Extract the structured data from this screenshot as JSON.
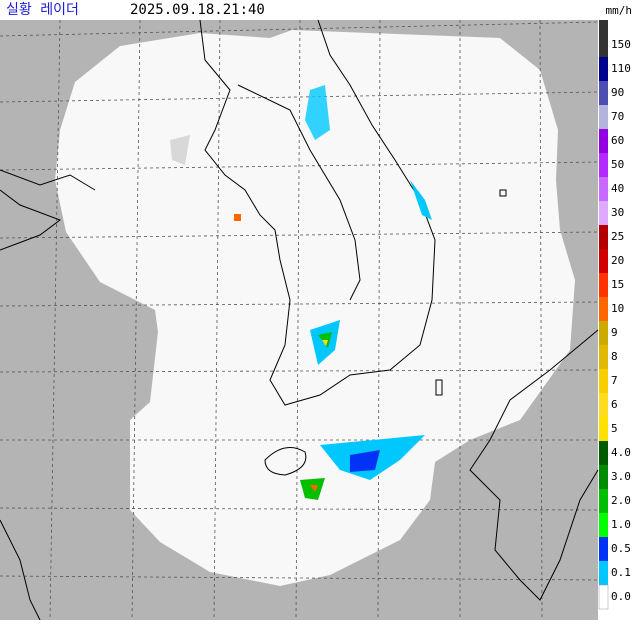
{
  "header": {
    "title": "실황 레이더",
    "timestamp": "2025.09.18.21:40",
    "unit": "mm/h"
  },
  "legend": {
    "levels": [
      {
        "label": "150",
        "color": "#333333"
      },
      {
        "label": "110",
        "color": "#000390"
      },
      {
        "label": "90",
        "color": "#4c4eb1"
      },
      {
        "label": "70",
        "color": "#b3b4de"
      },
      {
        "label": "60",
        "color": "#9300e4"
      },
      {
        "label": "50",
        "color": "#b329ff"
      },
      {
        "label": "40",
        "color": "#c969ff"
      },
      {
        "label": "30",
        "color": "#dfa9ff"
      },
      {
        "label": "25",
        "color": "#b40000"
      },
      {
        "label": "20",
        "color": "#d20000"
      },
      {
        "label": "15",
        "color": "#ff3300"
      },
      {
        "label": "10",
        "color": "#ff6600"
      },
      {
        "label": "9",
        "color": "#ccaa00"
      },
      {
        "label": "8",
        "color": "#e0b900"
      },
      {
        "label": "7",
        "color": "#f9cd00"
      },
      {
        "label": "6",
        "color": "#ffdc1f"
      },
      {
        "label": "5",
        "color": "#ffe100"
      },
      {
        "label": "4.0",
        "color": "#005a00"
      },
      {
        "label": "3.0",
        "color": "#008c00"
      },
      {
        "label": "2.0",
        "color": "#00be00"
      },
      {
        "label": "1.0",
        "color": "#00ff00"
      },
      {
        "label": "0.5",
        "color": "#0033f5"
      },
      {
        "label": "0.1",
        "color": "#00c8ff"
      },
      {
        "label": "0.0",
        "color": "#ffffff"
      }
    ]
  }
}
